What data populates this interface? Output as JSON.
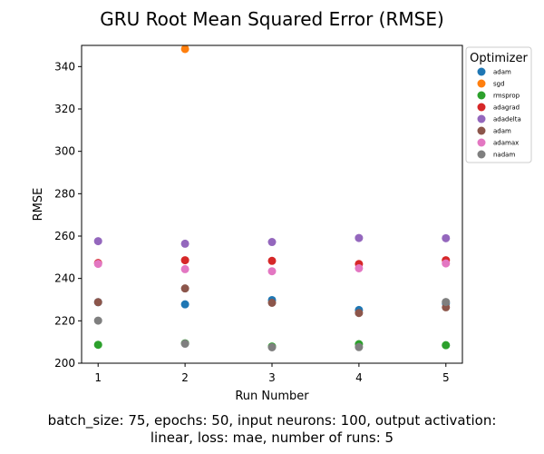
{
  "chart_data": {
    "type": "scatter",
    "title": "GRU Root Mean Squared Error (RMSE)",
    "xlabel": "Run Number",
    "ylabel": "RMSE",
    "xlim": [
      0.81,
      5.19
    ],
    "ylim": [
      200,
      350
    ],
    "xticks": [
      1,
      2,
      3,
      4,
      5
    ],
    "yticks": [
      200,
      220,
      240,
      260,
      280,
      300,
      320,
      340
    ],
    "grid": false,
    "legend": {
      "title": "Optimizer",
      "placement": "outside-top-right"
    },
    "x": [
      1,
      2,
      3,
      4,
      5
    ],
    "series": [
      {
        "name": "adam",
        "color": "#1f77b4",
        "values": [
          228.8,
          227.8,
          229.8,
          225.1,
          228.3
        ]
      },
      {
        "name": "sgd",
        "color": "#ff7f0e",
        "values": [
          null,
          348.3,
          null,
          null,
          null
        ]
      },
      {
        "name": "rmsprop",
        "color": "#2ca02c",
        "values": [
          208.7,
          209.4,
          207.9,
          209.0,
          208.5
        ]
      },
      {
        "name": "adagrad",
        "color": "#d62728",
        "values": [
          247.3,
          248.6,
          248.3,
          246.8,
          248.6
        ]
      },
      {
        "name": "adadelta",
        "color": "#9467bd",
        "values": [
          257.6,
          256.4,
          257.2,
          259.1,
          259.0
        ]
      },
      {
        "name": "adam",
        "color": "#8c564b",
        "values": [
          228.8,
          235.3,
          228.5,
          223.7,
          226.4
        ]
      },
      {
        "name": "adamax",
        "color": "#e377c2",
        "values": [
          246.9,
          244.4,
          243.4,
          244.8,
          247.1
        ]
      },
      {
        "name": "nadam",
        "color": "#7f7f7f",
        "values": [
          220.1,
          209.2,
          207.5,
          207.6,
          228.9
        ]
      }
    ]
  },
  "caption": {
    "line1": "batch_size: 75, epochs: 50, input neurons: 100, output activation:",
    "line2": "linear, loss: mae, number of runs: 5"
  }
}
